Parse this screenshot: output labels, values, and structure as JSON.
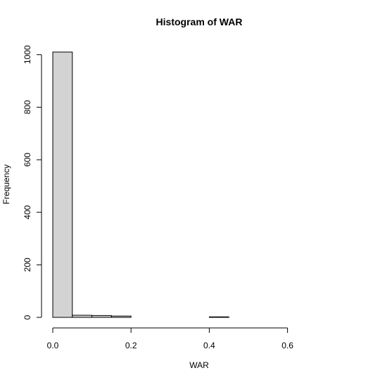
{
  "chart_data": {
    "type": "bar",
    "title": "Histogram of WAR",
    "xlabel": "WAR",
    "ylabel": "Frequency",
    "bar_fill": "#d3d3d3",
    "bar_stroke": "#000000",
    "bins": [
      {
        "x0": 0.0,
        "x1": 0.05,
        "count": 1010
      },
      {
        "x0": 0.05,
        "x1": 0.1,
        "count": 8
      },
      {
        "x0": 0.1,
        "x1": 0.15,
        "count": 7
      },
      {
        "x0": 0.15,
        "x1": 0.2,
        "count": 5
      },
      {
        "x0": 0.2,
        "x1": 0.25,
        "count": 0
      },
      {
        "x0": 0.25,
        "x1": 0.3,
        "count": 0
      },
      {
        "x0": 0.3,
        "x1": 0.35,
        "count": 0
      },
      {
        "x0": 0.35,
        "x1": 0.4,
        "count": 0
      },
      {
        "x0": 0.4,
        "x1": 0.45,
        "count": 2
      },
      {
        "x0": 0.45,
        "x1": 0.5,
        "count": 0
      },
      {
        "x0": 0.5,
        "x1": 0.55,
        "count": 0
      },
      {
        "x0": 0.55,
        "x1": 0.6,
        "count": 0
      },
      {
        "x0": 0.6,
        "x1": 0.65,
        "count": 0
      },
      {
        "x0": 0.65,
        "x1": 0.7,
        "count": 0
      },
      {
        "x0": 0.7,
        "x1": 0.75,
        "count": 0
      }
    ],
    "xticks": [
      "0.0",
      "0.2",
      "0.4",
      "0.6"
    ],
    "xtick_values": [
      0.0,
      0.2,
      0.4,
      0.6
    ],
    "yticks": [
      "0",
      "200",
      "400",
      "600",
      "800",
      "1000"
    ],
    "ytick_values": [
      0,
      200,
      400,
      600,
      800,
      1000
    ],
    "xlim": [
      0,
      0.75
    ],
    "ylim": [
      0,
      1010
    ],
    "grid": false
  }
}
